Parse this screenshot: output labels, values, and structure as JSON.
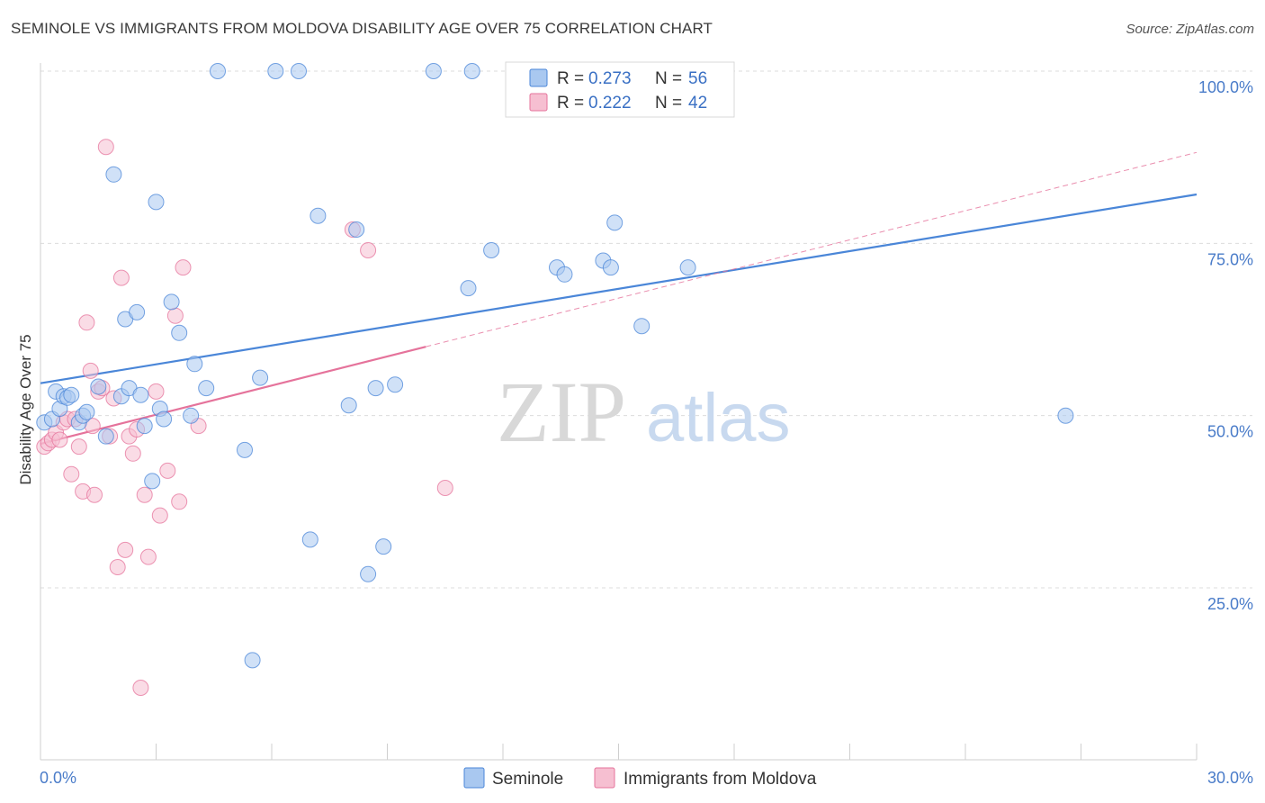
{
  "title": "SEMINOLE VS IMMIGRANTS FROM MOLDOVA DISABILITY AGE OVER 75 CORRELATION CHART",
  "source": "Source: ZipAtlas.com",
  "watermark": {
    "zip": "ZIP",
    "atlas": "atlas"
  },
  "colors": {
    "seminole": "#4a86d8",
    "moldova": "#e5739b",
    "seminole_fill": "#a9c8f0",
    "moldova_fill": "#f6bfd1",
    "tick": "#4a7cc9"
  },
  "legend_top": [
    {
      "r_label": "R = ",
      "r": "0.273",
      "n_label": "N = ",
      "n": "56"
    },
    {
      "r_label": "R = ",
      "r": "0.222",
      "n_label": "N = ",
      "n": "42"
    }
  ],
  "chart_data": {
    "type": "scatter",
    "ylabel": "Disability Age Over 75",
    "xlim": [
      0,
      30
    ],
    "ylim": [
      0,
      104
    ],
    "x_tick_labels": [
      "0.0%",
      "30.0%"
    ],
    "y_ticks": [
      25,
      50,
      75,
      100
    ],
    "y_tick_labels": [
      "25.0%",
      "50.0%",
      "75.0%",
      "100.0%"
    ],
    "grid": "horizontal dashed",
    "legend_position": "top-center",
    "series": [
      {
        "name": "Seminole",
        "trend": {
          "x": [
            0,
            30
          ],
          "y": [
            54.7,
            82.1
          ],
          "style": "solid"
        },
        "points": [
          [
            0.1,
            49
          ],
          [
            0.3,
            49.5
          ],
          [
            0.4,
            53.5
          ],
          [
            0.5,
            51
          ],
          [
            0.6,
            52.8
          ],
          [
            0.7,
            52.6
          ],
          [
            0.8,
            53
          ],
          [
            1.0,
            49
          ],
          [
            1.1,
            50
          ],
          [
            1.2,
            50.5
          ],
          [
            1.5,
            54.2
          ],
          [
            1.7,
            47
          ],
          [
            1.9,
            85
          ],
          [
            2.1,
            52.8
          ],
          [
            2.2,
            64
          ],
          [
            2.3,
            54
          ],
          [
            2.5,
            65
          ],
          [
            2.6,
            53
          ],
          [
            2.7,
            48.5
          ],
          [
            2.9,
            40.5
          ],
          [
            3.0,
            81
          ],
          [
            3.1,
            51
          ],
          [
            3.2,
            49.5
          ],
          [
            3.4,
            66.5
          ],
          [
            3.6,
            62
          ],
          [
            3.9,
            50
          ],
          [
            4.0,
            57.5
          ],
          [
            4.3,
            54
          ],
          [
            4.6,
            100
          ],
          [
            5.3,
            45
          ],
          [
            5.5,
            14.5
          ],
          [
            5.7,
            55.5
          ],
          [
            6.1,
            100
          ],
          [
            6.7,
            100
          ],
          [
            7.0,
            32
          ],
          [
            7.2,
            79
          ],
          [
            8.0,
            51.5
          ],
          [
            8.2,
            77
          ],
          [
            8.5,
            27
          ],
          [
            8.7,
            54
          ],
          [
            8.9,
            31
          ],
          [
            9.2,
            54.5
          ],
          [
            10.2,
            100
          ],
          [
            11.1,
            68.5
          ],
          [
            11.2,
            100
          ],
          [
            11.7,
            74
          ],
          [
            13.4,
            71.5
          ],
          [
            13.6,
            70.5
          ],
          [
            14.6,
            72.5
          ],
          [
            14.8,
            71.5
          ],
          [
            14.9,
            78
          ],
          [
            15.6,
            63
          ],
          [
            16.8,
            71.5
          ],
          [
            26.6,
            50
          ]
        ]
      },
      {
        "name": "Immigrants from Moldova",
        "trend": {
          "x": [
            0,
            10
          ],
          "y": [
            45.9,
            60
          ],
          "style": "solid",
          "extension": {
            "x": [
              10,
              30
            ],
            "y": [
              60,
              88.2
            ],
            "style": "dashed"
          }
        },
        "points": [
          [
            0.1,
            45.5
          ],
          [
            0.2,
            46
          ],
          [
            0.3,
            46.5
          ],
          [
            0.4,
            47.5
          ],
          [
            0.5,
            46.5
          ],
          [
            0.6,
            49
          ],
          [
            0.7,
            49.5
          ],
          [
            0.8,
            41.5
          ],
          [
            0.9,
            49.5
          ],
          [
            1.0,
            45.5
          ],
          [
            1.1,
            39
          ],
          [
            1.2,
            63.5
          ],
          [
            1.3,
            56.5
          ],
          [
            1.35,
            48.5
          ],
          [
            1.4,
            38.5
          ],
          [
            1.5,
            53.5
          ],
          [
            1.6,
            54
          ],
          [
            1.7,
            89
          ],
          [
            1.8,
            47
          ],
          [
            1.9,
            52.5
          ],
          [
            2.0,
            28
          ],
          [
            2.1,
            70
          ],
          [
            2.2,
            30.5
          ],
          [
            2.3,
            47
          ],
          [
            2.4,
            44.5
          ],
          [
            2.5,
            48
          ],
          [
            2.6,
            10.5
          ],
          [
            2.7,
            38.5
          ],
          [
            2.8,
            29.5
          ],
          [
            3.0,
            53.5
          ],
          [
            3.1,
            35.5
          ],
          [
            3.3,
            42
          ],
          [
            3.5,
            64.5
          ],
          [
            3.6,
            37.5
          ],
          [
            3.7,
            71.5
          ],
          [
            4.1,
            48.5
          ],
          [
            8.1,
            77
          ],
          [
            8.5,
            74
          ],
          [
            10.5,
            39.5
          ]
        ]
      }
    ]
  }
}
